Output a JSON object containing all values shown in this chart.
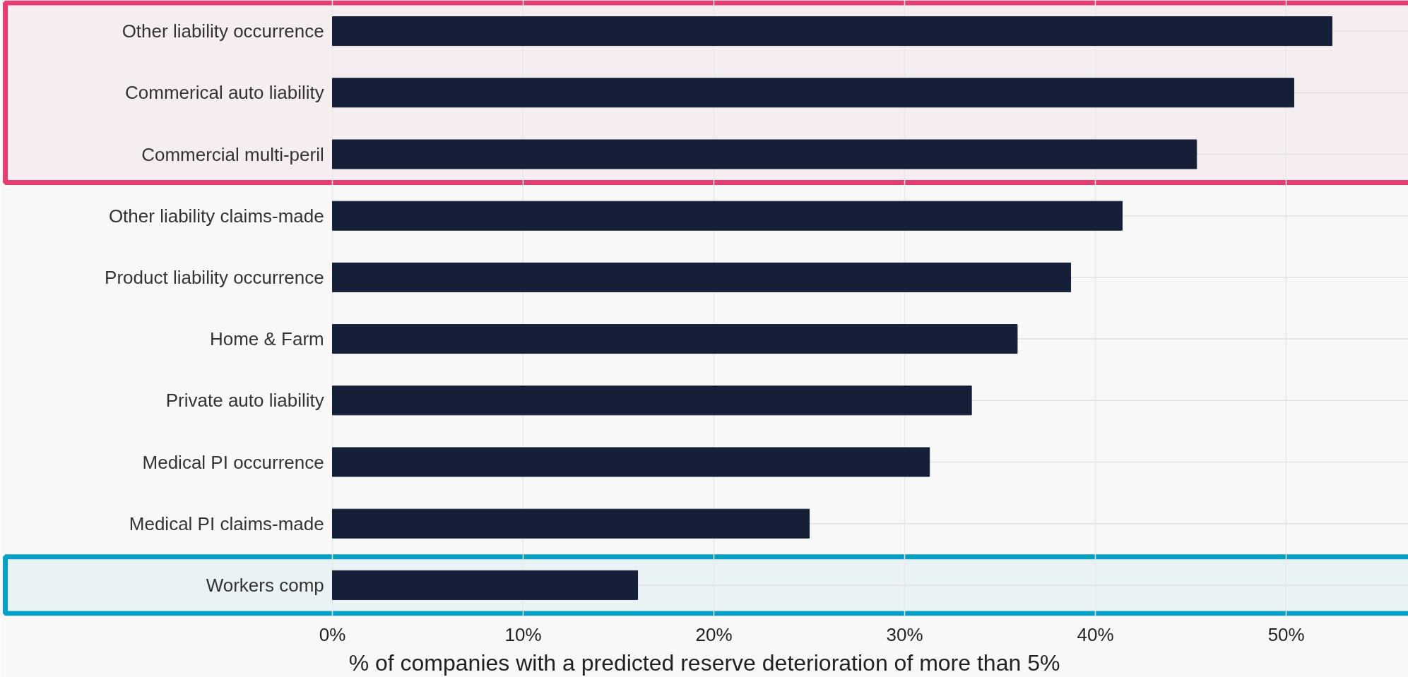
{
  "chart_data": {
    "type": "bar",
    "orientation": "horizontal",
    "xlabel": "% of companies with a predicted reserve deterioration of more than 5%",
    "categories": [
      "Other liability occurrence",
      "Commerical auto liability",
      "Commercial multi-peril",
      "Other liability claims-made",
      "Product liability occurrence",
      "Home & Farm",
      "Private auto liability",
      "Medical PI occurrence",
      "Medical PI claims-made",
      "Workers comp"
    ],
    "values": [
      52.4,
      50.4,
      45.3,
      41.4,
      38.7,
      35.9,
      33.5,
      31.3,
      25.0,
      16.0
    ],
    "color": "#151f37",
    "xlim": [
      0,
      56.4
    ],
    "xticks": [
      {
        "value": 0,
        "label": "0%"
      },
      {
        "value": 10,
        "label": "10%"
      },
      {
        "value": 20,
        "label": "20%"
      },
      {
        "value": 30,
        "label": "30%"
      },
      {
        "value": 40,
        "label": "40%"
      },
      {
        "value": 50,
        "label": "50%"
      }
    ],
    "grid": true,
    "bands": [
      {
        "axis": "y",
        "from": "Other liability occurrence",
        "to": "Commercial multi-peril",
        "color": "#e33e6f"
      },
      {
        "axis": "y",
        "from": "Workers comp",
        "to": "Workers comp",
        "color": "#06a0c6"
      }
    ]
  }
}
